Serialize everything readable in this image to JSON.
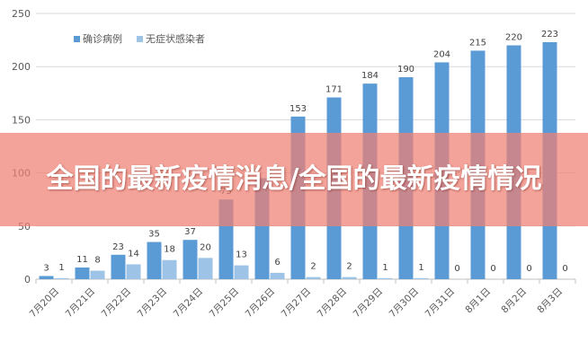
{
  "banner": {
    "title": "全国的最新疫情消息/全国的最新疫情情况"
  },
  "colors": {
    "confirmed": "#5b9bd5",
    "asymptomatic": "#9dc3e6",
    "gridline": "#d9d9d9",
    "axis": "#bfbfbf",
    "banner": "#f08073"
  },
  "chart_data": {
    "type": "bar",
    "title": "",
    "xlabel": "",
    "ylabel": "",
    "ylim": [
      0,
      250
    ],
    "yticks": [
      0,
      50,
      100,
      150,
      200,
      250
    ],
    "grid": true,
    "legend_position": "top-left",
    "categories": [
      "7月20日",
      "7月21日",
      "7月22日",
      "7月23日",
      "7月24日",
      "7月25日",
      "7月26日",
      "7月27日",
      "7月28日",
      "7月29日",
      "7月30日",
      "7月31日",
      "8月1日",
      "8月2日",
      "8月3日"
    ],
    "series": [
      {
        "name": "确诊病例",
        "color": "#5b9bd5",
        "values": [
          3,
          11,
          23,
          35,
          37,
          75,
          95,
          153,
          171,
          184,
          190,
          204,
          215,
          220,
          223
        ],
        "labels": [
          "3",
          "11",
          "23",
          "35",
          "37",
          "75",
          "",
          "153",
          "171",
          "184",
          "190",
          "204",
          "215",
          "220",
          "223"
        ]
      },
      {
        "name": "无症状感染者",
        "color": "#9dc3e6",
        "values": [
          1,
          8,
          14,
          18,
          20,
          13,
          6,
          2,
          2,
          1,
          1,
          0,
          0,
          0,
          0
        ],
        "labels": [
          "1",
          "8",
          "14",
          "18",
          "20",
          "13",
          "6",
          "2",
          "2",
          "1",
          "1",
          "0",
          "0",
          "0",
          "0"
        ]
      }
    ]
  }
}
